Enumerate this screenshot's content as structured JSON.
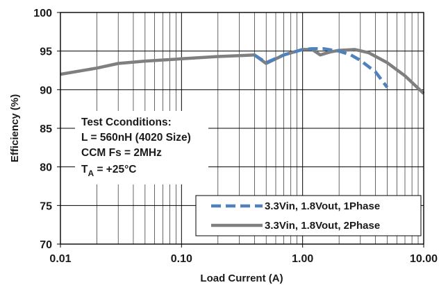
{
  "chart_data": {
    "type": "line",
    "xscale": "log",
    "xlim": [
      0.01,
      10
    ],
    "ylim": [
      70,
      100
    ],
    "grid": true,
    "xlabel": "Load Current (A)",
    "ylabel": "Efficiency (%)",
    "x_ticks": [
      "0.01",
      "0.10",
      "1.00",
      "10.00"
    ],
    "y_ticks": [
      "70",
      "75",
      "80",
      "85",
      "90",
      "95",
      "100"
    ],
    "legend_position": "bottom-right",
    "annotation": {
      "lines": [
        "Test Cconditions:",
        "L = 560nH (4020 Size)",
        "CCM Fs = 2MHz"
      ],
      "temp_prefix": "T",
      "temp_subscript": "A",
      "temp_suffix": " = +25°C"
    },
    "series": [
      {
        "name": "3.3Vin, 1.8Vout, 1Phase",
        "color": "#4f81bd",
        "style": "dashed",
        "x": [
          0.4,
          0.5,
          0.7,
          1.0,
          1.2,
          1.5,
          2.0,
          2.5,
          3.0,
          4.0,
          5.0
        ],
        "y": [
          94.5,
          93.5,
          94.5,
          95.2,
          95.3,
          95.3,
          95.0,
          94.5,
          93.8,
          92.3,
          90.3
        ]
      },
      {
        "name": "3.3Vin, 1.8Vout, 2Phase",
        "color": "#7f7f7f",
        "style": "solid",
        "x": [
          0.01,
          0.02,
          0.03,
          0.05,
          0.1,
          0.2,
          0.3,
          0.4,
          0.5,
          0.7,
          1.0,
          1.2,
          1.4,
          1.7,
          2.0,
          2.7,
          3.5,
          5.0,
          7.0,
          10.0
        ],
        "y": [
          92.0,
          92.8,
          93.4,
          93.7,
          94.0,
          94.3,
          94.4,
          94.5,
          93.4,
          94.5,
          95.2,
          95.2,
          94.5,
          94.9,
          95.1,
          95.2,
          94.8,
          93.5,
          91.8,
          89.5
        ]
      }
    ]
  }
}
